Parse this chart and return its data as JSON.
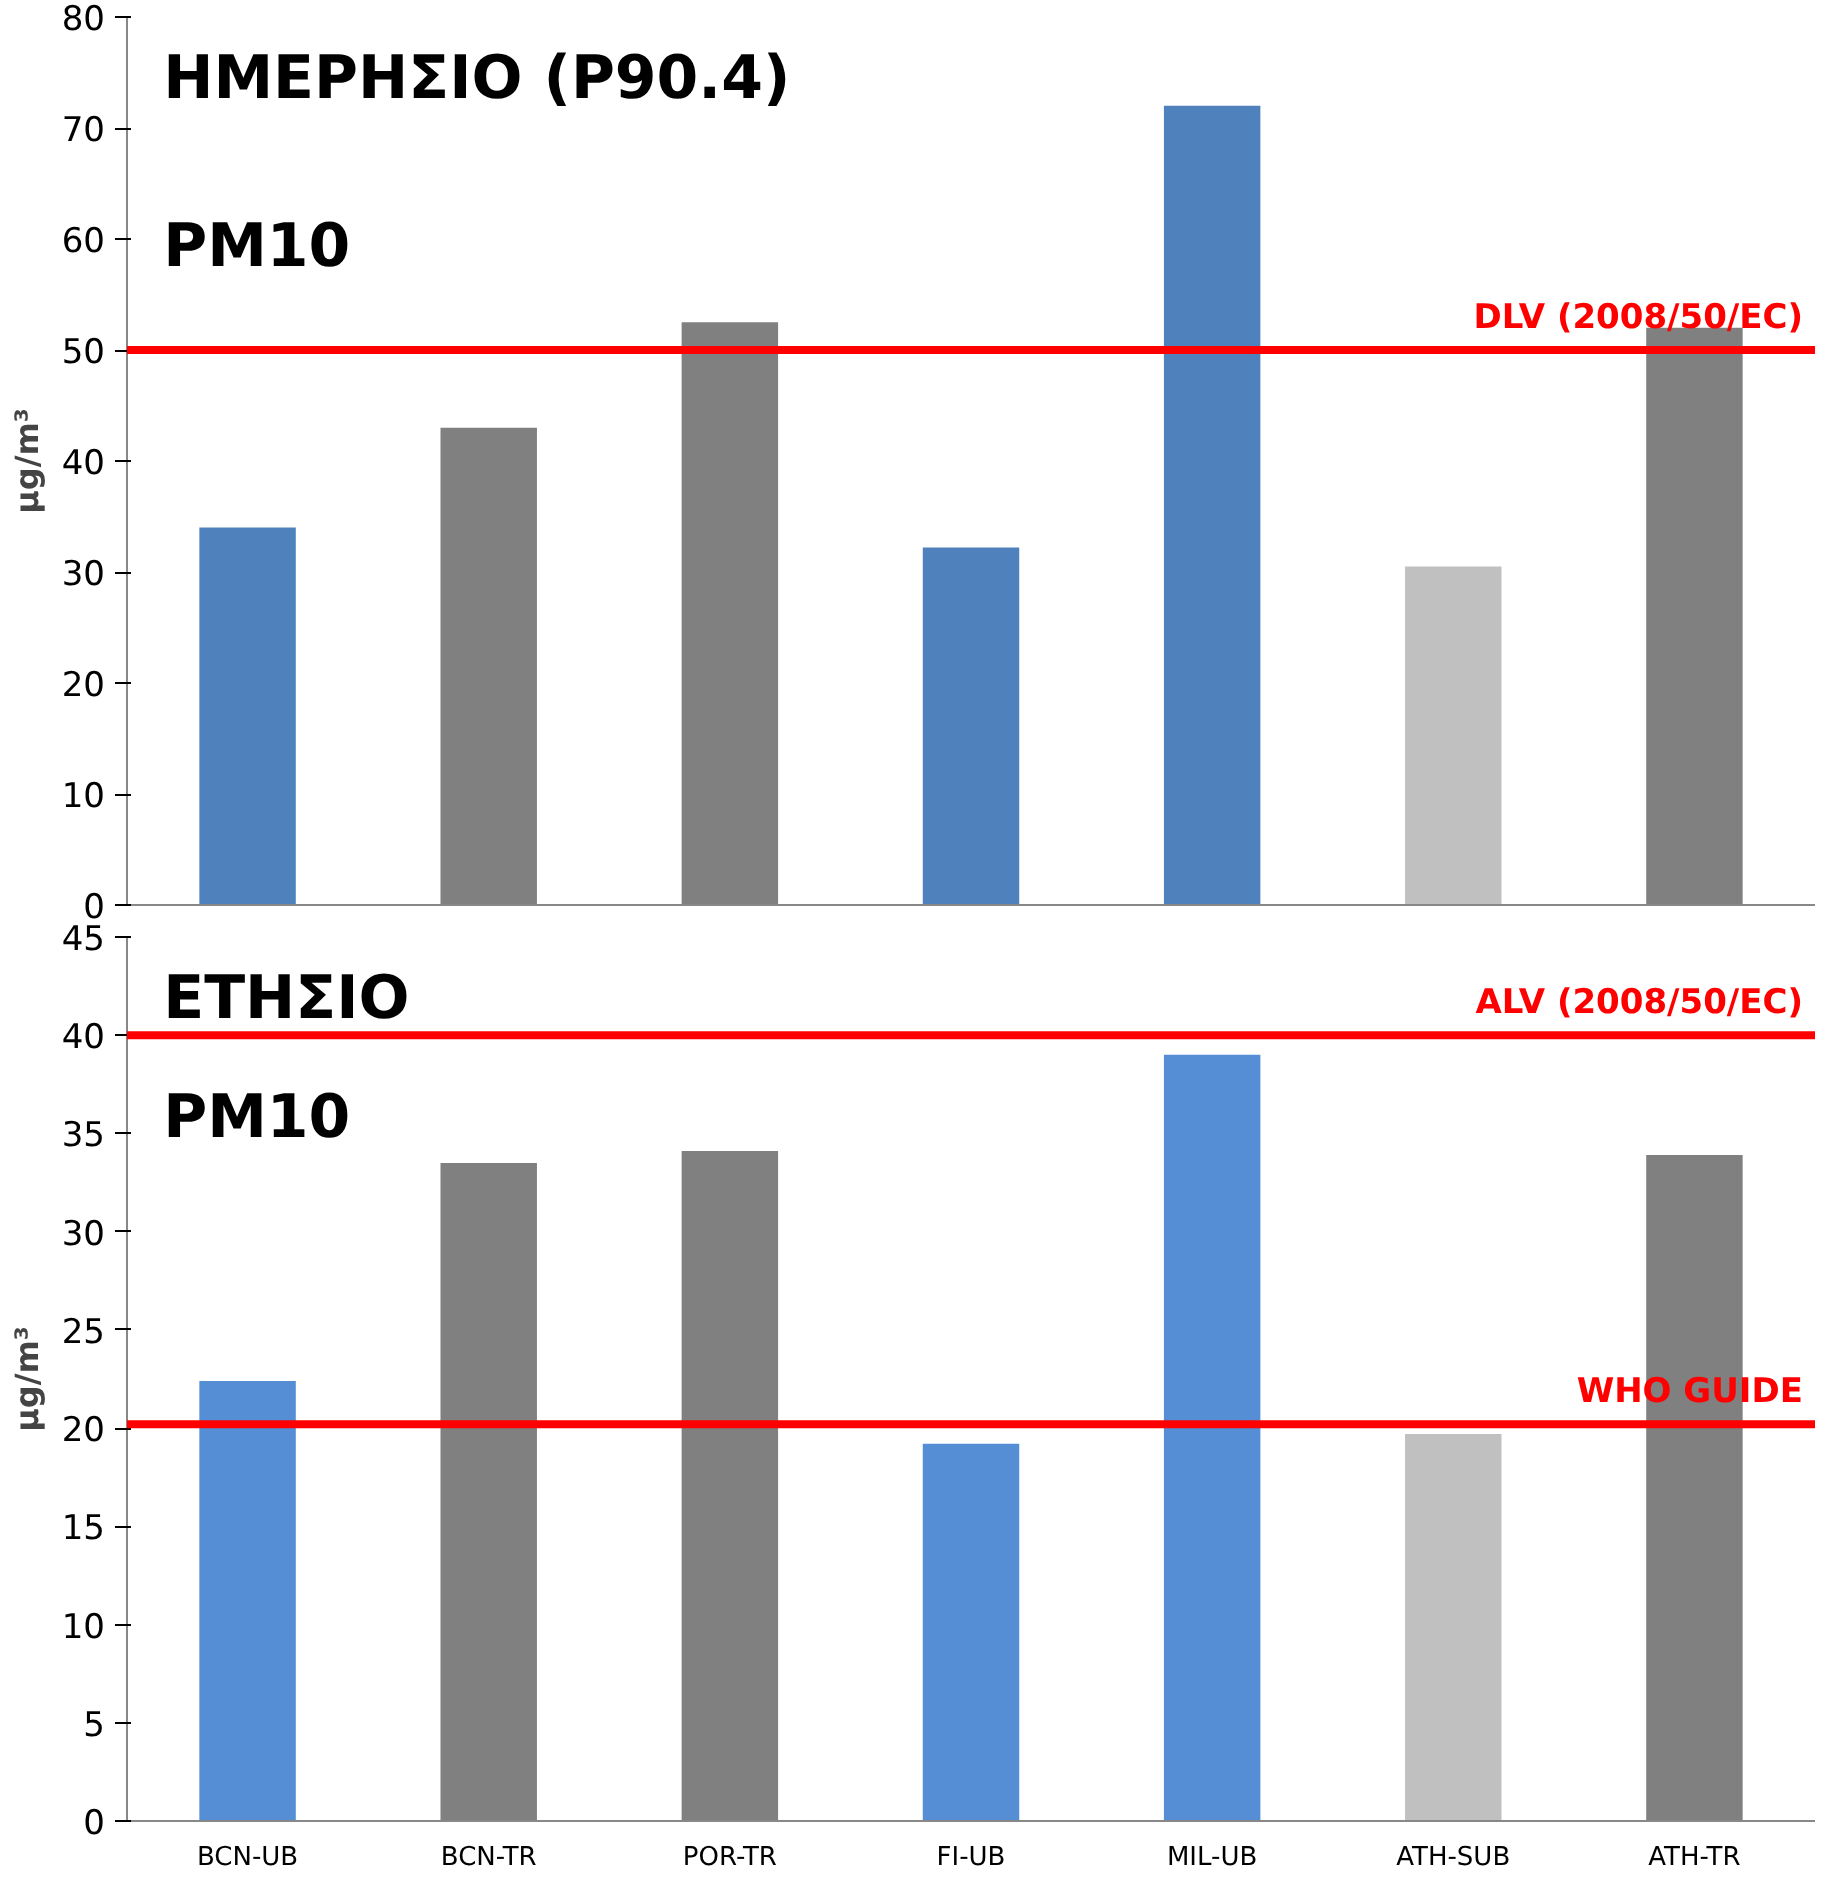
{
  "chart_data": [
    {
      "type": "bar",
      "categories": [
        null,
        null,
        null,
        null,
        null,
        null,
        null
      ],
      "values": [
        34,
        43,
        52.5,
        32.2,
        72,
        30.5,
        52
      ],
      "colors": [
        "#4f81bd",
        "#808080",
        "#808080",
        "#4f81bd",
        "#4f81bd",
        "#c0c0c0",
        "#808080"
      ],
      "ylim": [
        0,
        80
      ],
      "yticks": [
        0,
        10,
        20,
        30,
        40,
        50,
        60,
        70,
        80
      ],
      "ylabel": "μg/m³",
      "tick_labels": "y",
      "grid": false,
      "ref_lines": [
        {
          "axis": "y",
          "value": 50,
          "label": "DLV (2008/50/EC)",
          "color": "#ff0000"
        }
      ],
      "annotations": [
        "ΗΜΕΡΗΣΙΟ (P90.4)",
        "PM10"
      ]
    },
    {
      "type": "bar",
      "categories": [
        "BCN-UB",
        "BCN-TR",
        "POR-TR",
        "FI-UB",
        "MIL-UB",
        "ATH-SUB",
        "ATH-TR"
      ],
      "values": [
        22.4,
        33.5,
        34.1,
        19.2,
        39,
        19.7,
        33.9
      ],
      "colors": [
        "#558ed5",
        "#808080",
        "#808080",
        "#558ed5",
        "#558ed5",
        "#c0c0c0",
        "#808080"
      ],
      "ylim": [
        0,
        45
      ],
      "yticks": [
        0,
        5,
        10,
        15,
        20,
        25,
        30,
        35,
        40,
        45
      ],
      "ylabel": "μg/m³",
      "grid": false,
      "ref_lines": [
        {
          "axis": "y",
          "value": 40,
          "label": "ALV (2008/50/EC)",
          "color": "#ff0000"
        },
        {
          "axis": "y",
          "value": 20.2,
          "label": "WHO GUIDE",
          "color": "#ff0000"
        }
      ],
      "annotations": [
        "ΕΤΗΣΙΟ",
        "PM10"
      ]
    }
  ]
}
